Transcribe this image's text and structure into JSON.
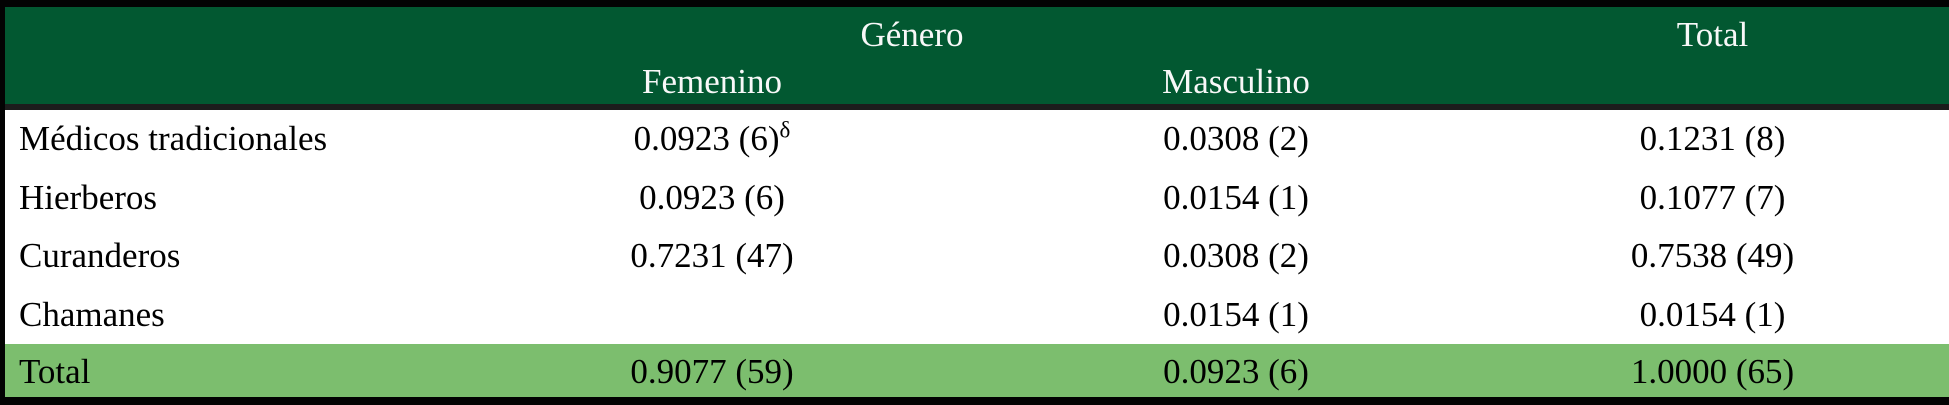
{
  "meta": {
    "description": "Frequency table of traditional medicine practitioners by gender",
    "language": "es"
  },
  "colors": {
    "header_bg": "#025831",
    "total_row_bg": "#7CBE6E",
    "border": "#030303",
    "header_text": "#F8F8F8",
    "body_text": "#000000"
  },
  "header": {
    "group_label": "Género",
    "col_female": "Femenino",
    "col_male": "Masculino",
    "col_total": "Total"
  },
  "rows": [
    {
      "label": "Médicos tradicionales",
      "femenino": "0.0923 (6)",
      "femenino_sup": "δ",
      "masculino": "0.0308 (2)",
      "total": "0.1231 (8)"
    },
    {
      "label": "Hierberos",
      "femenino": "0.0923 (6)",
      "masculino": "0.0154 (1)",
      "total": "0.1077 (7)"
    },
    {
      "label": "Curanderos",
      "femenino": "0.7231 (47)",
      "masculino": "0.0308 (2)",
      "total": "0.7538 (49)"
    },
    {
      "label": "Chamanes",
      "femenino": "",
      "masculino": "0.0154 (1)",
      "total": "0.0154 (1)"
    }
  ],
  "total_row": {
    "label": "Total",
    "femenino": "0.9077 (59)",
    "masculino": "0.0923 (6)",
    "total": "1.0000 (65)"
  },
  "chart_data": {
    "type": "table",
    "title": "Género",
    "columns": [
      "",
      "Femenino",
      "Masculino",
      "Total"
    ],
    "rows": [
      [
        "Médicos tradicionales",
        "0.0923 (6)δ",
        "0.0308 (2)",
        "0.1231 (8)"
      ],
      [
        "Hierberos",
        "0.0923 (6)",
        "0.0154 (1)",
        "0.1077 (7)"
      ],
      [
        "Curanderos",
        "0.7231 (47)",
        "0.0308 (2)",
        "0.7538 (49)"
      ],
      [
        "Chamanes",
        "",
        "0.0154 (1)",
        "0.0154 (1)"
      ],
      [
        "Total",
        "0.9077 (59)",
        "0.0923 (6)",
        "1.0000 (65)"
      ]
    ]
  }
}
